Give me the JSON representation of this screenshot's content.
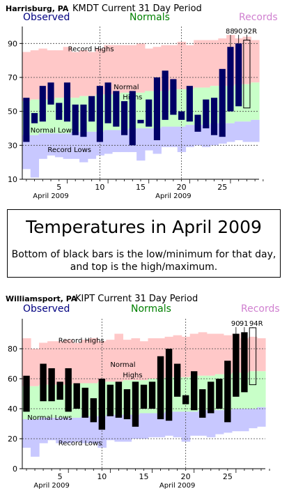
{
  "info_box": {
    "title": "Temperatures in April 2009",
    "description": "Bottom of black bars is the low/minimum for that day, and top is the high/maximum."
  },
  "legend_words": {
    "observed": "Observed",
    "normals": "Normals",
    "records": "Records"
  },
  "colors": {
    "record_band": "#ffc8c8",
    "normal_band": "#c8ffc8",
    "low_band": "#c8c8ff",
    "observed_legend": "#000080",
    "normals_legend": "#008000",
    "records_legend": "#d080d0"
  },
  "chart_data": [
    {
      "type": "bar",
      "station": "Harrisburg, PA",
      "title": "KMDT Current 31 Day Period",
      "bar_color": "#000066",
      "ylim": [
        10,
        100
      ],
      "xlim": [
        0,
        29
      ],
      "yticks": [
        10,
        30,
        50,
        70,
        90
      ],
      "xticks": [
        5,
        10,
        15,
        20,
        25
      ],
      "month_labels": [
        {
          "text": "April 2009",
          "x": 4
        },
        {
          "text": "April 2009",
          "x": 19
        }
      ],
      "grid": true,
      "band_labels": {
        "record_highs": "Record Highs",
        "normal_highs": "Normal Highs",
        "normal_lows": "Normal Lows",
        "record_lows": "Record Lows"
      },
      "annotations": [
        "88",
        "90",
        "92R"
      ],
      "days": [
        1,
        2,
        3,
        4,
        5,
        6,
        7,
        8,
        9,
        10,
        11,
        12,
        13,
        14,
        15,
        16,
        17,
        18,
        19,
        20,
        21,
        22,
        23,
        24,
        25,
        26,
        27
      ],
      "observed_high": [
        58,
        49,
        65,
        67,
        55,
        67,
        54,
        54,
        59,
        65,
        67,
        62,
        56,
        62,
        45,
        57,
        70,
        74,
        69,
        50,
        65,
        48,
        57,
        58,
        75,
        88,
        90,
        92
      ],
      "observed_low": [
        32,
        43,
        44,
        54,
        45,
        44,
        36,
        35,
        44,
        32,
        43,
        41,
        36,
        30,
        43,
        41,
        33,
        45,
        48,
        45,
        44,
        38,
        40,
        36,
        35,
        50,
        53,
        52
      ],
      "record_high": [
        85,
        86,
        87,
        86,
        86,
        88,
        85,
        86,
        85,
        87,
        89,
        89,
        89,
        89,
        90,
        87,
        88,
        89,
        89,
        91,
        89,
        92,
        92,
        92,
        93,
        95,
        93,
        94,
        92
      ],
      "normal_high": [
        56,
        57,
        57,
        57,
        58,
        58,
        58,
        59,
        59,
        60,
        60,
        60,
        61,
        61,
        61,
        62,
        62,
        62,
        63,
        63,
        63,
        64,
        64,
        65,
        65,
        65,
        66,
        66,
        67
      ],
      "normal_low": [
        36,
        36,
        37,
        37,
        37,
        37,
        38,
        38,
        38,
        38,
        39,
        39,
        39,
        40,
        40,
        40,
        40,
        41,
        41,
        41,
        42,
        42,
        42,
        43,
        43,
        43,
        44,
        44,
        45
      ],
      "record_low": [
        16,
        11,
        22,
        24,
        23,
        22,
        22,
        20,
        22,
        24,
        25,
        26,
        26,
        26,
        21,
        27,
        25,
        29,
        29,
        26,
        29,
        30,
        29,
        30,
        31,
        32,
        33,
        32,
        32
      ],
      "bar_days": [
        1,
        2,
        3,
        4,
        5,
        6,
        7,
        8,
        9,
        10,
        11,
        12,
        13,
        14,
        15,
        16,
        17,
        18,
        19,
        20,
        21,
        22,
        23,
        24,
        25,
        26,
        27,
        28
      ]
    },
    {
      "type": "bar",
      "station": "Williamsport, PA",
      "title": "KIPT Current 31 Day Period",
      "bar_color": "#000000",
      "ylim": [
        0,
        100
      ],
      "xlim": [
        0,
        29
      ],
      "yticks": [
        0,
        20,
        40,
        60,
        80
      ],
      "xticks": [
        5,
        10,
        15,
        20,
        25
      ],
      "month_labels": [
        {
          "text": "April 2009",
          "x": 4
        },
        {
          "text": "April 2009",
          "x": 19
        }
      ],
      "grid": true,
      "band_labels": {
        "record_highs": "Record Highs",
        "normal_highs": "Normal Highs",
        "normal_lows": "Normal Lows",
        "record_lows": "Record Lows"
      },
      "annotations": [
        "90",
        "91",
        "94R"
      ],
      "days": [
        1,
        2,
        3,
        4,
        5,
        6,
        7,
        8,
        9,
        10,
        11,
        12,
        13,
        14,
        15,
        16,
        17,
        18,
        19,
        20,
        21,
        22,
        23,
        24,
        25,
        26,
        27
      ],
      "observed_high": [
        62,
        51,
        70,
        67,
        58,
        67,
        57,
        54,
        47,
        60,
        56,
        58,
        53,
        58,
        56,
        58,
        75,
        80,
        70,
        49,
        65,
        53,
        58,
        60,
        72,
        90,
        91,
        94
      ],
      "observed_low": [
        38,
        51,
        45,
        45,
        46,
        38,
        40,
        34,
        31,
        26,
        35,
        34,
        33,
        28,
        40,
        40,
        33,
        32,
        48,
        43,
        39,
        34,
        37,
        40,
        31,
        48,
        51,
        56
      ],
      "record_high": [
        87,
        80,
        84,
        85,
        85,
        86,
        84,
        86,
        87,
        85,
        86,
        90,
        86,
        87,
        85,
        87,
        87,
        88,
        89,
        88,
        90,
        91,
        90,
        90,
        89,
        90,
        87,
        88,
        87
      ],
      "normal_high": [
        55,
        55,
        56,
        56,
        56,
        56,
        57,
        57,
        57,
        58,
        58,
        58,
        59,
        59,
        59,
        60,
        60,
        61,
        61,
        61,
        62,
        62,
        62,
        63,
        63,
        64,
        64,
        65,
        65
      ],
      "normal_low": [
        33,
        33,
        34,
        34,
        34,
        34,
        34,
        35,
        35,
        35,
        36,
        36,
        36,
        36,
        37,
        37,
        37,
        38,
        38,
        38,
        38,
        39,
        39,
        39,
        39,
        40,
        40,
        40,
        41
      ],
      "record_low": [
        14,
        8,
        17,
        19,
        17,
        17,
        18,
        17,
        17,
        14,
        19,
        18,
        18,
        20,
        20,
        21,
        21,
        22,
        21,
        18,
        22,
        22,
        21,
        23,
        24,
        25,
        25,
        27,
        28
      ],
      "bar_days": [
        1,
        2,
        3,
        4,
        5,
        6,
        7,
        8,
        9,
        10,
        11,
        12,
        13,
        14,
        15,
        16,
        17,
        18,
        19,
        20,
        21,
        22,
        23,
        24,
        25,
        26,
        27,
        28
      ]
    }
  ]
}
